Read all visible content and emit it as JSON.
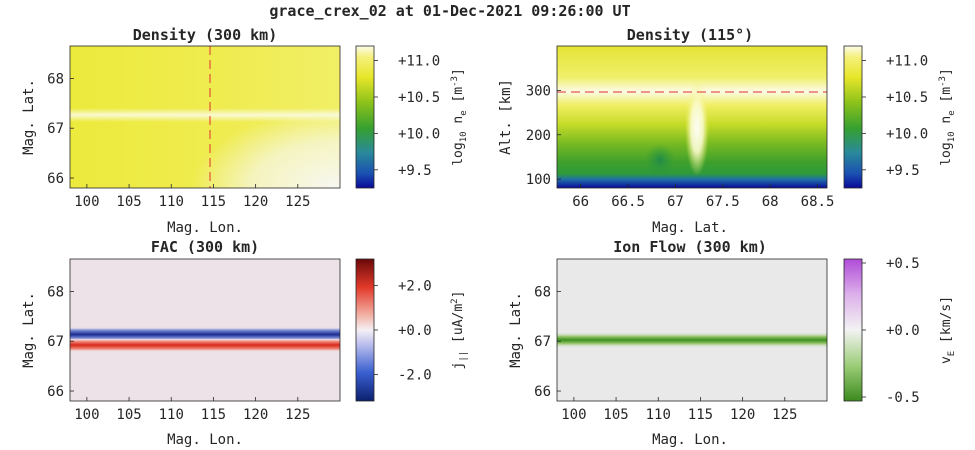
{
  "figure_title": "grace_crex_02 at 01-Dec-2021 09:26:00 UT",
  "chart_data": [
    {
      "type": "heatmap",
      "title": "Density (300 km)",
      "xlabel": "Mag. Lon.",
      "ylabel": "Mag. Lat.",
      "xlim": [
        98,
        130
      ],
      "ylim": [
        65.8,
        68.65
      ],
      "xticks": [
        "100",
        "105",
        "110",
        "115",
        "120",
        "125"
      ],
      "yticks": [
        "66",
        "67",
        "68"
      ],
      "marker": {
        "axis": "x",
        "value": 115,
        "color": "#e03030"
      },
      "colorbar": {
        "label": "log₁₀ nₑ [m⁻³]",
        "range": [
          9.25,
          11.2
        ],
        "ticks": [
          "+11.0",
          "+10.5",
          "+10.0",
          "+9.5"
        ],
        "colormap": "blue-green-yellow-white"
      },
      "field": "density high (~11.0) with a thin bright band near 67.25 lat and whitening toward lower right"
    },
    {
      "type": "heatmap",
      "title": "Density (115°)",
      "xlabel": "Mag. Lat.",
      "ylabel": "Alt. [km]",
      "xlim": [
        65.75,
        68.6
      ],
      "ylim": [
        80,
        400
      ],
      "xticks": [
        "66",
        "66.5",
        "67",
        "67.5",
        "68",
        "68.5"
      ],
      "yticks": [
        "100",
        "200",
        "300"
      ],
      "marker": {
        "axis": "y",
        "value": 300,
        "color": "#e03030"
      },
      "colorbar": {
        "label": "log₁₀ nₑ [m⁻³]",
        "range": [
          9.25,
          11.2
        ],
        "ticks": [
          "+11.0",
          "+10.5",
          "+10.0",
          "+9.5"
        ],
        "colormap": "blue-green-yellow-white"
      },
      "field": "peak (white) near 270 km, green below 200 km, blue at lowest altitudes, vertical enhancement near 67.3"
    },
    {
      "type": "heatmap",
      "title": "FAC (300 km)",
      "xlabel": "Mag. Lon.",
      "ylabel": "Mag. Lat.",
      "xlim": [
        98,
        130
      ],
      "ylim": [
        65.8,
        68.65
      ],
      "xticks": [
        "100",
        "105",
        "110",
        "115",
        "120",
        "125"
      ],
      "yticks": [
        "66",
        "67",
        "68"
      ],
      "colorbar": {
        "label": "j|| [uA/m²]",
        "range": [
          -3.2,
          3.2
        ],
        "ticks": [
          "+2.0",
          "+0.0",
          "-2.0"
        ],
        "colormap": "blue-white-red"
      },
      "bands": [
        {
          "lat": 67.12,
          "value": -3.0
        },
        {
          "lat": 66.92,
          "value": 2.5
        }
      ],
      "background_value": 0.3
    },
    {
      "type": "heatmap",
      "title": "Ion Flow (300 km)",
      "xlabel": "Mag. Lon.",
      "ylabel": "Mag. Lat.",
      "xlim": [
        98,
        130
      ],
      "ylim": [
        65.8,
        68.65
      ],
      "xticks": [
        "100",
        "105",
        "110",
        "115",
        "120",
        "125"
      ],
      "yticks": [
        "66",
        "67",
        "68"
      ],
      "colorbar": {
        "label": "vₑ [km/s]",
        "range": [
          -0.5,
          0.5
        ],
        "ticks": [
          "+0.5",
          "+0.0",
          "-0.5"
        ],
        "colormap": "green-white-purple"
      },
      "bands": [
        {
          "lat": 67.0,
          "value": -0.4
        }
      ],
      "background_value": 0.0
    }
  ]
}
